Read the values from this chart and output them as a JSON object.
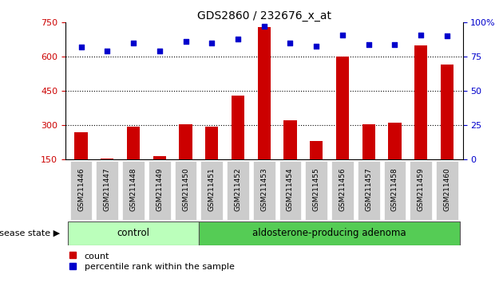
{
  "title": "GDS2860 / 232676_x_at",
  "samples": [
    "GSM211446",
    "GSM211447",
    "GSM211448",
    "GSM211449",
    "GSM211450",
    "GSM211451",
    "GSM211452",
    "GSM211453",
    "GSM211454",
    "GSM211455",
    "GSM211456",
    "GSM211457",
    "GSM211458",
    "GSM211459",
    "GSM211460"
  ],
  "bar_values": [
    270,
    155,
    295,
    165,
    305,
    295,
    430,
    730,
    320,
    230,
    600,
    305,
    310,
    650,
    565
  ],
  "dot_values": [
    82,
    79,
    85,
    79,
    86,
    85,
    88,
    97,
    85,
    83,
    91,
    84,
    84,
    91,
    90
  ],
  "bar_color": "#cc0000",
  "dot_color": "#0000cc",
  "ylim_left": [
    150,
    750
  ],
  "ylim_right": [
    0,
    100
  ],
  "yticks_left": [
    150,
    300,
    450,
    600,
    750
  ],
  "yticks_right": [
    0,
    25,
    50,
    75,
    100
  ],
  "ytick_labels_right": [
    "0",
    "25",
    "50",
    "75",
    "100%"
  ],
  "grid_values": [
    300,
    450,
    600
  ],
  "n_control": 5,
  "control_label": "control",
  "adenoma_label": "aldosterone-producing adenoma",
  "control_color": "#bbffbb",
  "adenoma_color": "#55cc55",
  "disease_state_label": "disease state",
  "legend_count": "count",
  "legend_percentile": "percentile rank within the sample",
  "bar_width": 0.5,
  "tick_bg_color": "#cccccc"
}
